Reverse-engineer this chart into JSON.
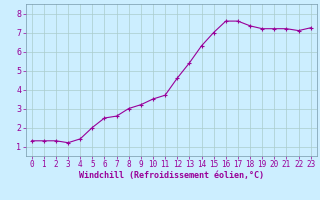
{
  "x": [
    0,
    1,
    2,
    3,
    4,
    5,
    6,
    7,
    8,
    9,
    10,
    11,
    12,
    13,
    14,
    15,
    16,
    17,
    18,
    19,
    20,
    21,
    22,
    23
  ],
  "y": [
    1.3,
    1.3,
    1.3,
    1.2,
    1.4,
    2.0,
    2.5,
    2.6,
    3.0,
    3.2,
    3.5,
    3.7,
    4.6,
    5.4,
    6.3,
    7.0,
    7.6,
    7.6,
    7.35,
    7.2,
    7.2,
    7.2,
    7.1,
    7.25
  ],
  "line_color": "#990099",
  "marker": "+",
  "marker_size": 3,
  "marker_linewidth": 0.8,
  "line_width": 0.8,
  "bg_color": "#cceeff",
  "grid_color": "#aacccc",
  "xlabel": "Windchill (Refroidissement éolien,°C)",
  "xlabel_color": "#990099",
  "xlim": [
    -0.5,
    23.5
  ],
  "ylim": [
    0.5,
    8.5
  ],
  "yticks": [
    1,
    2,
    3,
    4,
    5,
    6,
    7,
    8
  ],
  "xticks": [
    0,
    1,
    2,
    3,
    4,
    5,
    6,
    7,
    8,
    9,
    10,
    11,
    12,
    13,
    14,
    15,
    16,
    17,
    18,
    19,
    20,
    21,
    22,
    23
  ],
  "tick_color": "#990099",
  "tick_fontsize": 5.5,
  "ylabel_fontsize": 6,
  "xlabel_fontsize": 6,
  "spine_color": "#7799aa"
}
